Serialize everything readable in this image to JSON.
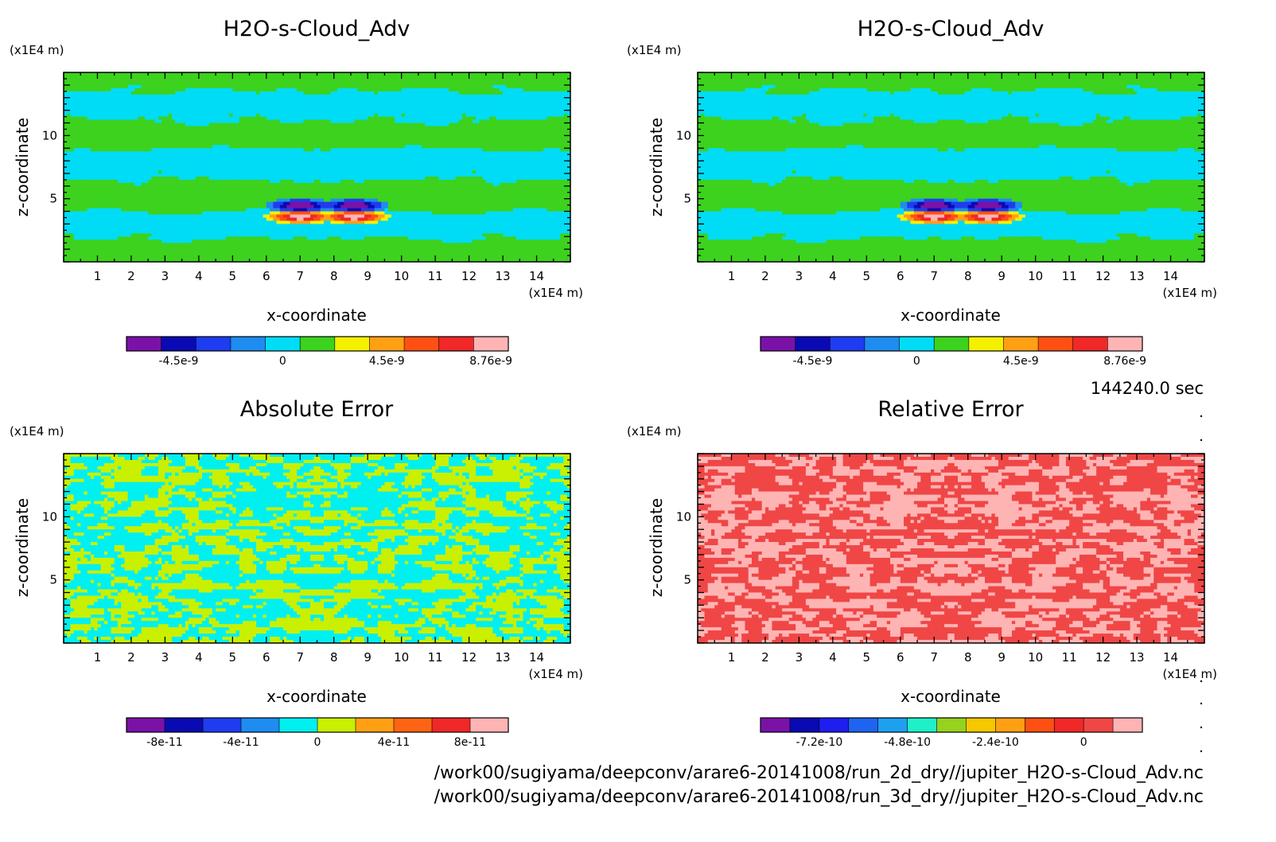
{
  "figure": {
    "time_label": "144240.0 sec",
    "file_paths": [
      "/work00/sugiyama/deepconv/arare6-20141008/run_2d_dry//jupiter_H2O-s-Cloud_Adv.nc",
      "/work00/sugiyama/deepconv/arare6-20141008/run_3d_dry//jupiter_H2O-s-Cloud_Adv.nc"
    ]
  },
  "chart_data": [
    {
      "type": "heatmap",
      "title": "H2O-s-Cloud_Adv",
      "xlabel": "x-coordinate",
      "ylabel": "z-coordinate",
      "x_unit": "(x1E4 m)",
      "y_unit": "(x1E4 m)",
      "xlim": [
        0,
        15
      ],
      "ylim": [
        0,
        15
      ],
      "x_ticks": [
        1,
        2,
        3,
        4,
        5,
        6,
        7,
        8,
        9,
        10,
        11,
        12,
        13,
        14
      ],
      "y_ticks": [
        5,
        10
      ],
      "field_pattern": "layered",
      "feature": "dipole at x~7.8, z~3.5-4.5 (negative above, positive below)",
      "colorbar": {
        "colors": [
          "#7a12a8",
          "#0a0ab4",
          "#1e3cf0",
          "#1e8cf0",
          "#00dcf5",
          "#3cd21e",
          "#f5f000",
          "#ffa014",
          "#ff5014",
          "#f02828",
          "#ffb4b4"
        ],
        "labels": [
          "-4.5e-9",
          "0",
          "4.5e-9",
          "8.76e-9"
        ],
        "label_positions": [
          1.5,
          4.5,
          7.5,
          10.5
        ]
      }
    },
    {
      "type": "heatmap",
      "title": "H2O-s-Cloud_Adv",
      "xlabel": "x-coordinate",
      "ylabel": "z-coordinate",
      "x_unit": "(x1E4 m)",
      "y_unit": "(x1E4 m)",
      "xlim": [
        0,
        15
      ],
      "ylim": [
        0,
        15
      ],
      "x_ticks": [
        1,
        2,
        3,
        4,
        5,
        6,
        7,
        8,
        9,
        10,
        11,
        12,
        13,
        14
      ],
      "y_ticks": [
        5,
        10
      ],
      "field_pattern": "layered",
      "feature": "dipole at x~7.8, z~3.5-4.5 (negative above, positive below)",
      "colorbar": {
        "colors": [
          "#7a12a8",
          "#0a0ab4",
          "#1e3cf0",
          "#1e8cf0",
          "#00dcf5",
          "#3cd21e",
          "#f5f000",
          "#ffa014",
          "#ff5014",
          "#f02828",
          "#ffb4b4"
        ],
        "labels": [
          "-4.5e-9",
          "0",
          "4.5e-9",
          "8.76e-9"
        ],
        "label_positions": [
          1.5,
          4.5,
          7.5,
          10.5
        ]
      }
    },
    {
      "type": "heatmap",
      "title": "Absolute Error",
      "xlabel": "x-coordinate",
      "ylabel": "z-coordinate",
      "x_unit": "(x1E4 m)",
      "y_unit": "(x1E4 m)",
      "xlim": [
        0,
        15
      ],
      "ylim": [
        0,
        15
      ],
      "x_ticks": [
        1,
        2,
        3,
        4,
        5,
        6,
        7,
        8,
        9,
        10,
        11,
        12,
        13,
        14
      ],
      "y_ticks": [
        5,
        10
      ],
      "field_pattern": "noisy",
      "feature": "values alternate between two bins: cyan (below 0) and yellow-green (above 0)",
      "colorbar": {
        "colors": [
          "#7a12a8",
          "#0a0ab4",
          "#1e3cf0",
          "#1e8cf0",
          "#00f0f0",
          "#c8f000",
          "#ffa014",
          "#ff6414",
          "#f02828",
          "#ffb4b4"
        ],
        "labels": [
          "-8e-11",
          "-4e-11",
          "0",
          "4e-11",
          "8e-11"
        ],
        "label_positions": [
          1,
          3,
          5,
          7,
          9
        ]
      }
    },
    {
      "type": "heatmap",
      "title": "Relative Error",
      "xlabel": "x-coordinate",
      "ylabel": "z-coordinate",
      "x_unit": "(x1E4 m)",
      "y_unit": "(x1E4 m)",
      "xlim": [
        0,
        15
      ],
      "ylim": [
        0,
        15
      ],
      "x_ticks": [
        1,
        2,
        3,
        4,
        5,
        6,
        7,
        8,
        9,
        10,
        11,
        12,
        13,
        14
      ],
      "y_ticks": [
        5,
        10
      ],
      "field_pattern": "noisy",
      "feature": "values alternate between two bins: red and light pink",
      "colorbar": {
        "colors": [
          "#7a12a8",
          "#0a0ab4",
          "#1e1ef0",
          "#1e64f0",
          "#1ea0f0",
          "#1ef0c8",
          "#96d21e",
          "#f5c800",
          "#ffa014",
          "#ff5014",
          "#f02828",
          "#f04646",
          "#ffb4b4"
        ],
        "labels": [
          "-7.2e-10",
          "-4.8e-10",
          "-2.4e-10",
          "0"
        ],
        "label_positions": [
          2,
          5,
          8,
          11
        ]
      }
    }
  ]
}
